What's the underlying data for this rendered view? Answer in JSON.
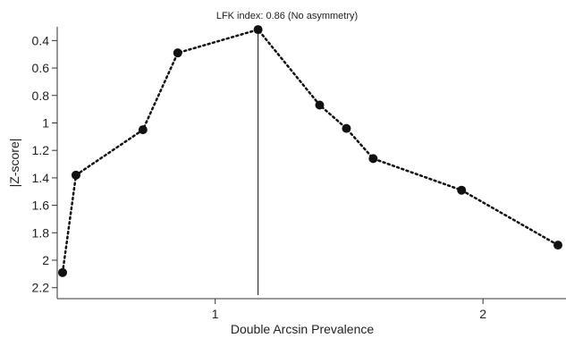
{
  "chart_data": {
    "type": "scatter",
    "title": "LFK index: 0.86 (No asymmetry)",
    "xlabel": "Double Arcsin Prevalence",
    "ylabel": "|Z-score|",
    "xlim": [
      0.41,
      2.31
    ],
    "ylim": [
      0.3,
      2.28
    ],
    "y_inverted": true,
    "x_ticks": [
      1,
      2
    ],
    "y_ticks": [
      0.4,
      0.6,
      0.8,
      1,
      1.2,
      1.4,
      1.6,
      1.8,
      2,
      2.2
    ],
    "x_tick_labels": [
      "1",
      "2"
    ],
    "y_tick_labels": [
      "0.4",
      "0.6",
      "0.8",
      "1",
      "1.2",
      "1.4",
      "1.6",
      "1.8",
      "2",
      "2.2"
    ],
    "line_style": "dotted",
    "reference_line_x": 1.16,
    "grid": false,
    "colors": {
      "points": "#111111",
      "line": "#111111",
      "axis": "#333333"
    },
    "points": [
      {
        "x": 0.43,
        "y": 2.09
      },
      {
        "x": 0.48,
        "y": 1.38
      },
      {
        "x": 0.73,
        "y": 1.05
      },
      {
        "x": 0.86,
        "y": 0.49
      },
      {
        "x": 1.16,
        "y": 0.32
      },
      {
        "x": 1.39,
        "y": 0.87
      },
      {
        "x": 1.49,
        "y": 1.04
      },
      {
        "x": 1.59,
        "y": 1.26
      },
      {
        "x": 1.92,
        "y": 1.49
      },
      {
        "x": 2.28,
        "y": 1.89
      }
    ]
  }
}
